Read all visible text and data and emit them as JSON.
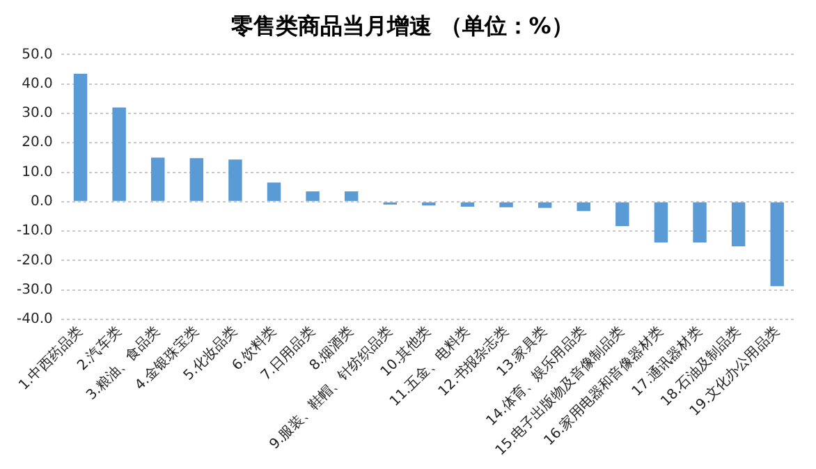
{
  "chart_data": {
    "type": "bar",
    "title": "零售类商品当月增速 （单位：%）",
    "categories": [
      "1.中西药品类",
      "2.汽车类",
      "3.粮油、食品类",
      "4.金银珠宝类",
      "5.化妆品类",
      "6.饮料类",
      "7.日用品类",
      "8.烟酒类",
      "9.服装、鞋帽、针纺织品类",
      "10.其他类",
      "11.五金、电料类",
      "12.书报杂志类",
      "13.家具类",
      "14.体育、娱乐用品类",
      "15.电子出版物及音像制品类",
      "16.家用电器和音像器材类",
      "17.通讯器材类",
      "18.石油及制品类",
      "19.文化办公用品类"
    ],
    "values": [
      43.5,
      32.0,
      15.0,
      14.8,
      14.3,
      6.5,
      3.5,
      3.5,
      -1.0,
      -1.3,
      -1.7,
      -1.9,
      -2.1,
      -3.2,
      -8.3,
      -13.9,
      -13.9,
      -15.2,
      -28.7
    ],
    "color": "#5b9bd5",
    "ylim": [
      -40,
      50
    ],
    "yticks": [
      {
        "value": 50,
        "label": "50.0"
      },
      {
        "value": 40,
        "label": "40.0"
      },
      {
        "value": 30,
        "label": "30.0"
      },
      {
        "value": 20,
        "label": "20.0"
      },
      {
        "value": 10,
        "label": "10.0"
      },
      {
        "value": 0,
        "label": "0.0"
      },
      {
        "value": -10,
        "label": "-10.0"
      },
      {
        "value": -20,
        "label": "-20.0"
      },
      {
        "value": -30,
        "label": "-30.0"
      },
      {
        "value": -40,
        "label": "-40.0"
      }
    ],
    "grid": "y"
  }
}
